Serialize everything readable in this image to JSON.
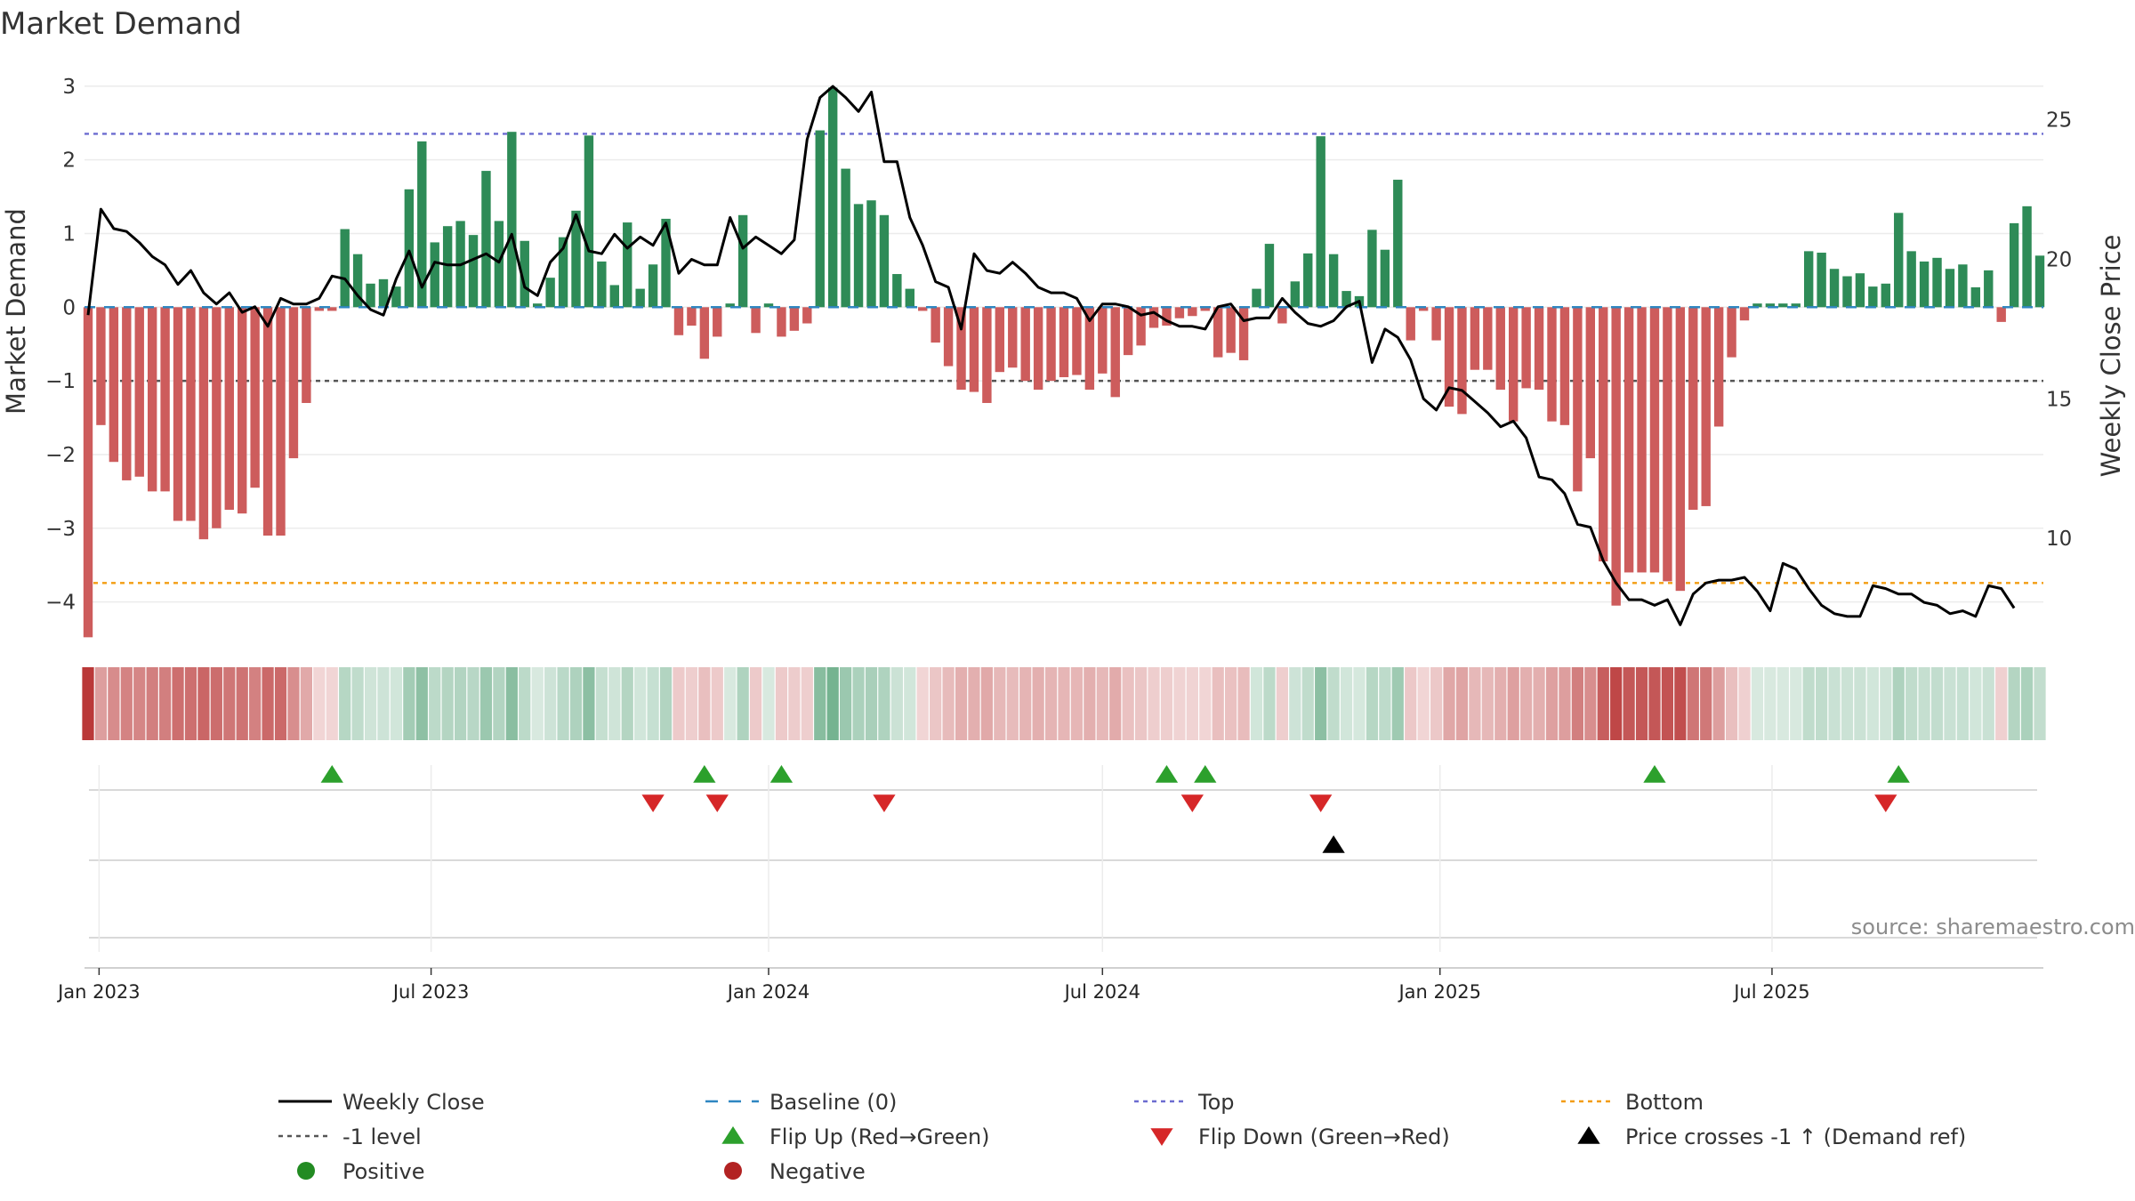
{
  "chart_data": {
    "type": "bar",
    "title": "Market Demand",
    "ylabel": "Market Demand",
    "y2label": "Weekly Close Price",
    "ylim": [
      -4.5,
      3.3
    ],
    "y_ticks": [
      -4,
      -3,
      -2,
      -1,
      0,
      1,
      2,
      3
    ],
    "y2lim": [
      6.4,
      27.0
    ],
    "y2_ticks": [
      10,
      15,
      20,
      25
    ],
    "x_ticks": [
      "Jan 2023",
      "Jul 2023",
      "Jan 2024",
      "Jul 2024",
      "Jan 2025",
      "Jul 2025"
    ],
    "grid": true,
    "legend_position": "bottom",
    "reference_lines": [
      {
        "name": "Top",
        "axis": "right",
        "value": 24.5,
        "color": "#6c6cd0"
      },
      {
        "name": "Bottom",
        "axis": "right",
        "value": 8.4,
        "color": "#f39c12"
      },
      {
        "name": "-1 level",
        "axis": "left",
        "value": -1,
        "color": "#555555"
      },
      {
        "name": "Baseline (0)",
        "axis": "left",
        "value": 0,
        "color": "#2e86c1"
      }
    ],
    "weeks_start": "2022-12-26",
    "series": [
      {
        "name": "Market Demand",
        "type": "bar",
        "values": [
          -4.48,
          -1.6,
          -2.1,
          -2.35,
          -2.3,
          -2.5,
          -2.5,
          -2.9,
          -2.9,
          -3.15,
          -3.0,
          -2.75,
          -2.8,
          -2.45,
          -3.1,
          -3.1,
          -2.05,
          -1.3,
          -0.05,
          -0.05,
          1.06,
          0.72,
          0.32,
          0.38,
          0.28,
          1.6,
          2.25,
          0.88,
          1.1,
          1.17,
          0.98,
          1.85,
          1.17,
          2.38,
          0.9,
          0.05,
          0.4,
          0.95,
          1.31,
          2.33,
          0.62,
          0.3,
          1.15,
          0.25,
          0.58,
          1.2,
          -0.38,
          -0.25,
          -0.7,
          -0.4,
          0.05,
          1.25,
          -0.35,
          0.05,
          -0.4,
          -0.32,
          -0.22,
          2.4,
          2.98,
          1.88,
          1.4,
          1.45,
          1.25,
          0.45,
          0.25,
          -0.05,
          -0.48,
          -0.8,
          -1.12,
          -1.15,
          -1.3,
          -0.88,
          -0.82,
          -1.0,
          -1.12,
          -1.0,
          -0.95,
          -0.92,
          -1.12,
          -0.9,
          -1.22,
          -0.65,
          -0.52,
          -0.28,
          -0.25,
          -0.15,
          -0.12,
          -0.05,
          -0.68,
          -0.62,
          -0.72,
          0.25,
          0.86,
          -0.22,
          0.35,
          0.73,
          2.32,
          0.72,
          0.22,
          0.15,
          1.05,
          0.78,
          1.73,
          -0.45,
          -0.05,
          -0.45,
          -1.35,
          -1.45,
          -0.85,
          -0.85,
          -1.12,
          -1.55,
          -1.1,
          -1.12,
          -1.55,
          -1.6,
          -2.5,
          -2.05,
          -3.45,
          -4.05,
          -3.6,
          -3.6,
          -3.6,
          -3.72,
          -3.85,
          -2.75,
          -2.7,
          -1.62,
          -0.68,
          -0.18,
          0.05,
          0.05,
          0.05,
          0.05,
          0.76,
          0.74,
          0.52,
          0.42,
          0.46,
          0.28,
          0.32,
          1.28,
          0.76,
          0.62,
          0.67,
          0.52,
          0.58,
          0.27,
          0.5,
          -0.2,
          1.14,
          1.37,
          0.7
        ]
      },
      {
        "name": "Weekly Close",
        "type": "line",
        "axis": "right",
        "values": [
          18.0,
          21.8,
          21.1,
          21.0,
          20.6,
          20.1,
          19.8,
          19.1,
          19.6,
          18.8,
          18.4,
          18.8,
          18.1,
          18.3,
          17.6,
          18.6,
          18.4,
          18.4,
          18.6,
          19.4,
          19.3,
          18.7,
          18.2,
          18.0,
          19.3,
          20.3,
          19.0,
          19.9,
          19.8,
          19.8,
          20.0,
          20.2,
          19.9,
          20.9,
          19.0,
          18.7,
          19.9,
          20.4,
          21.6,
          20.3,
          20.2,
          20.9,
          20.4,
          20.8,
          20.5,
          21.3,
          19.5,
          20.0,
          19.8,
          19.8,
          21.5,
          20.4,
          20.8,
          20.5,
          20.2,
          20.7,
          24.3,
          25.8,
          26.2,
          25.8,
          25.3,
          26.0,
          23.5,
          23.5,
          21.5,
          20.5,
          19.2,
          19.0,
          17.5,
          20.2,
          19.6,
          19.5,
          19.9,
          19.5,
          19.0,
          18.8,
          18.8,
          18.6,
          17.8,
          18.4,
          18.4,
          18.3,
          18.0,
          18.1,
          17.8,
          17.6,
          17.6,
          17.5,
          18.3,
          18.4,
          17.8,
          17.9,
          17.9,
          18.6,
          18.1,
          17.7,
          17.6,
          17.8,
          18.3,
          18.5,
          16.3,
          17.5,
          17.2,
          16.4,
          15.0,
          14.6,
          15.4,
          15.3,
          14.9,
          14.5,
          14.0,
          14.2,
          13.6,
          12.2,
          12.1,
          11.6,
          10.5,
          10.4,
          9.2,
          8.4,
          7.8,
          7.8,
          7.6,
          7.8,
          6.9,
          8.0,
          8.4,
          8.5,
          8.5,
          8.6,
          8.1,
          7.4,
          9.1,
          8.9,
          8.2,
          7.6,
          7.3,
          7.2,
          7.2,
          8.3,
          8.2,
          8.0,
          8.0,
          7.7,
          7.6,
          7.3,
          7.4,
          7.2,
          8.3,
          8.2,
          7.5
        ]
      }
    ],
    "markers": {
      "flip_up_weeks": [
        19,
        48,
        54,
        84,
        87,
        122,
        141
      ],
      "flip_down_weeks": [
        44,
        49,
        62,
        86,
        96,
        140
      ],
      "price_cross_weeks": [
        97
      ]
    }
  },
  "source_text": "source: sharemaestro.com",
  "legend": [
    {
      "label": "Weekly Close",
      "symbol": "line",
      "color": "#000000"
    },
    {
      "label": "Baseline (0)",
      "symbol": "dash",
      "color": "#2e86c1"
    },
    {
      "label": "Top",
      "symbol": "dot",
      "color": "#6c6cd0"
    },
    {
      "label": "Bottom",
      "symbol": "dot",
      "color": "#f39c12"
    },
    {
      "label": "-1 level",
      "symbol": "dot",
      "color": "#555555"
    },
    {
      "label": "Flip Up (Red→Green)",
      "symbol": "tri-up",
      "color": "#2ca02c"
    },
    {
      "label": "Flip Down (Green→Red)",
      "symbol": "tri-down",
      "color": "#d62728"
    },
    {
      "label": "Price crosses -1 ↑ (Demand ref)",
      "symbol": "tri-up",
      "color": "#000000"
    },
    {
      "label": "Positive",
      "symbol": "circle",
      "color": "#228b22"
    },
    {
      "label": "Negative",
      "symbol": "circle",
      "color": "#b22222"
    }
  ],
  "colors": {
    "positive_bar": "#2e8b57",
    "negative_bar": "#cd5c5c"
  }
}
